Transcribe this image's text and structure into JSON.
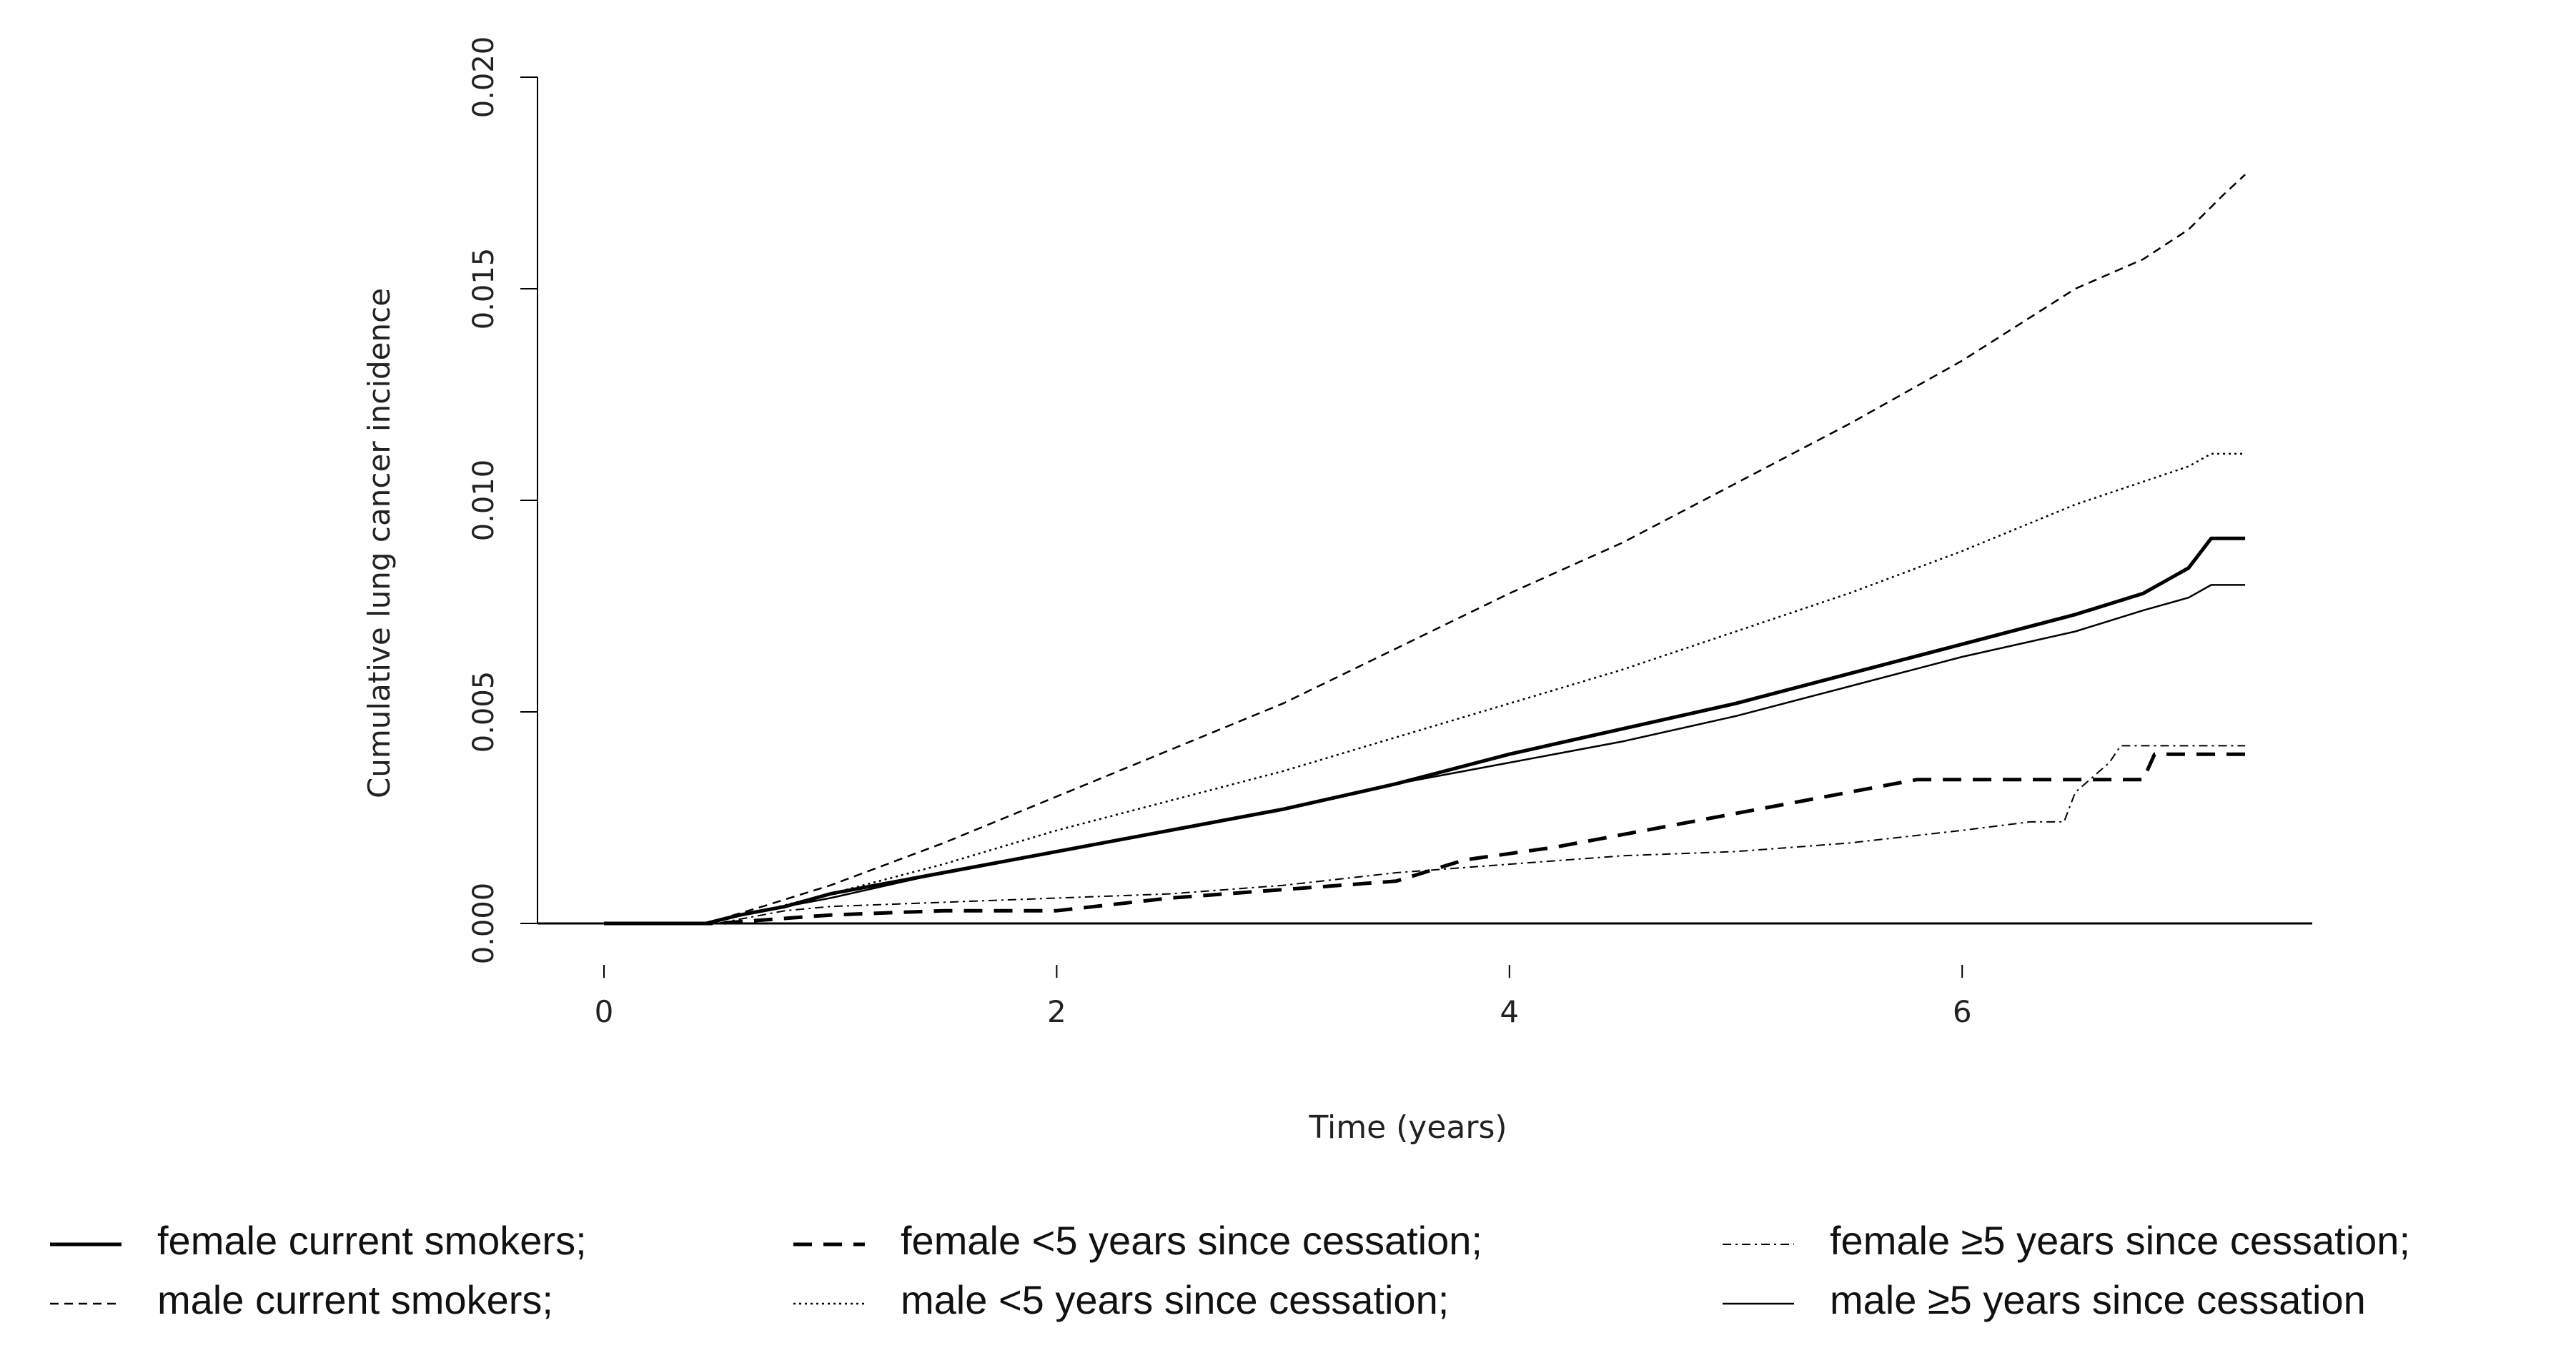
{
  "chart_data": {
    "type": "line",
    "title": "",
    "xlabel": "Time (years)",
    "ylabel": "Cumulative lung cancer incidence",
    "xlim": [
      0,
      7.5
    ],
    "ylim": [
      0,
      0.02
    ],
    "x_ticks": [
      {
        "value": 0,
        "label": "0"
      },
      {
        "value": 2,
        "label": "2"
      },
      {
        "value": 4,
        "label": "4"
      },
      {
        "value": 6,
        "label": "6"
      }
    ],
    "y_ticks": [
      {
        "value": 0,
        "label": "0.000"
      },
      {
        "value": 0.005,
        "label": "0.005"
      },
      {
        "value": 0.01,
        "label": "0.010"
      },
      {
        "value": 0.015,
        "label": "0.015"
      },
      {
        "value": 0.02,
        "label": "0.020"
      }
    ],
    "grid": false,
    "legend_position": "bottom",
    "series": [
      {
        "name": "female current smokers;",
        "legend_label": "female current smokers;",
        "style": "solid-thick",
        "x": [
          0,
          0.45,
          0.6,
          0.8,
          1.0,
          1.2,
          1.5,
          2.0,
          2.5,
          3.0,
          3.5,
          4.0,
          4.5,
          5.0,
          5.5,
          6.0,
          6.5,
          6.8,
          6.9,
          7.0,
          7.1,
          7.25
        ],
        "y": [
          0,
          0,
          0.0002,
          0.0004,
          0.0007,
          0.0009,
          0.0012,
          0.0017,
          0.0022,
          0.0027,
          0.0033,
          0.004,
          0.0046,
          0.0052,
          0.0059,
          0.0066,
          0.0073,
          0.0078,
          0.0081,
          0.0084,
          0.0091,
          0.0091
        ]
      },
      {
        "name": "female <5 years since cessation;",
        "legend_label": "female <5 years since cessation;",
        "style": "dashed-thick",
        "x": [
          0,
          0.5,
          1.0,
          1.5,
          2.0,
          2.5,
          3.0,
          3.5,
          3.8,
          4.2,
          4.6,
          5.0,
          5.4,
          5.8,
          6.2,
          6.5,
          6.8,
          6.85,
          7.25
        ],
        "y": [
          0,
          0,
          0.0002,
          0.0003,
          0.0003,
          0.0006,
          0.0008,
          0.001,
          0.0015,
          0.0018,
          0.0022,
          0.0026,
          0.003,
          0.0034,
          0.0034,
          0.0034,
          0.0034,
          0.004,
          0.004
        ]
      },
      {
        "name": "female ≥5 years since cessation;",
        "legend_label": "female ≥5 years since cessation;",
        "style": "dashdot-thin",
        "x": [
          0,
          0.5,
          0.8,
          1.0,
          1.5,
          2.0,
          2.5,
          3.0,
          3.5,
          4.0,
          4.5,
          5.0,
          5.5,
          6.0,
          6.3,
          6.45,
          6.5,
          6.65,
          6.7,
          7.25
        ],
        "y": [
          0,
          0,
          0.0003,
          0.0004,
          0.0005,
          0.0006,
          0.0007,
          0.0009,
          0.0012,
          0.0014,
          0.0016,
          0.0017,
          0.0019,
          0.0022,
          0.0024,
          0.0024,
          0.0031,
          0.0038,
          0.0042,
          0.0042
        ]
      },
      {
        "name": "male current smokers;",
        "legend_label": "male current smokers;",
        "style": "dashed-thin",
        "x": [
          0,
          0.45,
          0.7,
          1.0,
          1.5,
          2.0,
          2.5,
          3.0,
          3.5,
          4.0,
          4.5,
          5.0,
          5.5,
          6.0,
          6.5,
          6.8,
          7.0,
          7.15,
          7.25
        ],
        "y": [
          0,
          0,
          0.0004,
          0.0009,
          0.0019,
          0.003,
          0.0041,
          0.0052,
          0.0065,
          0.0078,
          0.009,
          0.0104,
          0.0118,
          0.0133,
          0.015,
          0.0157,
          0.0164,
          0.0172,
          0.0177
        ]
      },
      {
        "name": "male <5 years since cessation;",
        "legend_label": "male <5 years since cessation;",
        "style": "dotted-thin",
        "x": [
          0,
          0.45,
          0.7,
          1.0,
          1.5,
          2.0,
          2.5,
          3.0,
          3.5,
          4.0,
          4.5,
          5.0,
          5.5,
          6.0,
          6.5,
          7.0,
          7.1,
          7.25
        ],
        "y": [
          0,
          0,
          0.0003,
          0.0007,
          0.0014,
          0.0022,
          0.0029,
          0.0036,
          0.0044,
          0.0052,
          0.006,
          0.0069,
          0.0078,
          0.0088,
          0.0099,
          0.0108,
          0.0111,
          0.0111
        ]
      },
      {
        "name": "male ≥5 years since cessation",
        "legend_label": "male ≥5 years since cessation",
        "style": "solid-thin",
        "x": [
          0,
          0.45,
          0.6,
          0.8,
          1.0,
          1.5,
          2.0,
          2.5,
          3.0,
          3.5,
          4.0,
          4.5,
          5.0,
          5.5,
          6.0,
          6.5,
          6.8,
          7.0,
          7.1,
          7.25
        ],
        "y": [
          0,
          0,
          0.0002,
          0.0004,
          0.0006,
          0.0012,
          0.0017,
          0.0022,
          0.0027,
          0.0033,
          0.0038,
          0.0043,
          0.0049,
          0.0056,
          0.0063,
          0.0069,
          0.0074,
          0.0077,
          0.008,
          0.008
        ]
      }
    ],
    "legend_layout": {
      "columns": [
        [
          "female current smokers;",
          "male current smokers;"
        ],
        [
          "female <5 years since cessation;",
          "male <5 years since cessation;"
        ],
        [
          "female ≥5 years since cessation;",
          "male ≥5 years since cessation"
        ]
      ]
    }
  }
}
